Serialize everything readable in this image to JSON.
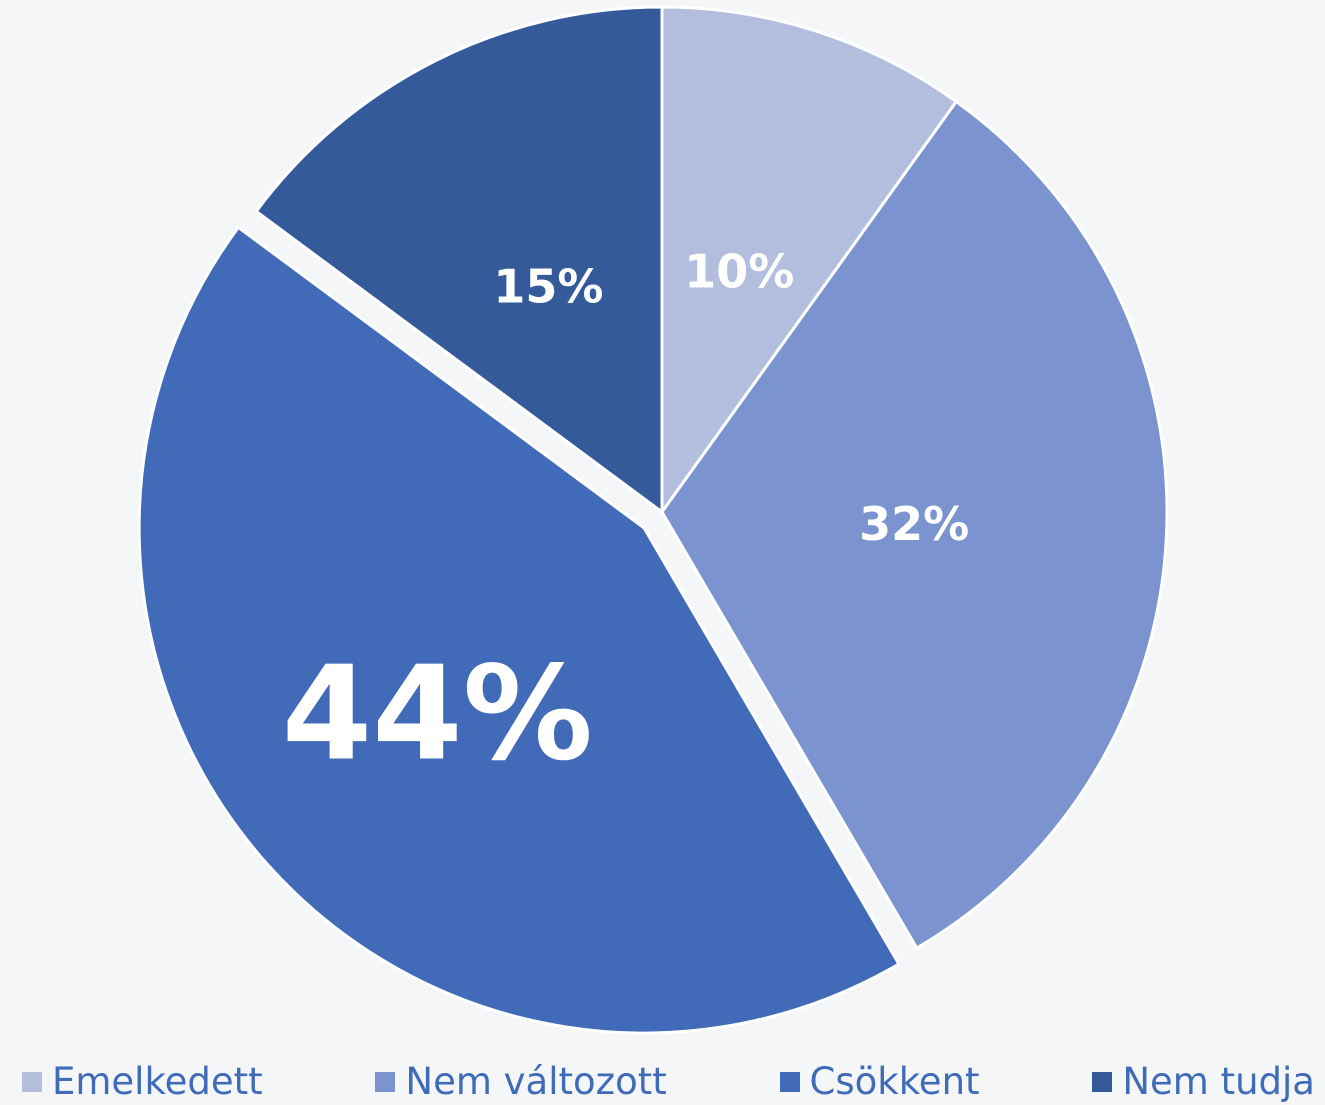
{
  "chart_data": {
    "type": "pie",
    "categories": [
      "Emelkedett",
      "Nem változott",
      "Csökkent",
      "Nem tudja"
    ],
    "values": [
      10,
      32,
      44,
      15
    ],
    "value_labels": [
      "10%",
      "32%",
      "44%",
      "15%"
    ],
    "colors": [
      "#b3bedf",
      "#7b93cf",
      "#416bb8",
      "#345a9a"
    ],
    "explode": [
      false,
      false,
      true,
      false
    ],
    "legend": "bottom"
  }
}
